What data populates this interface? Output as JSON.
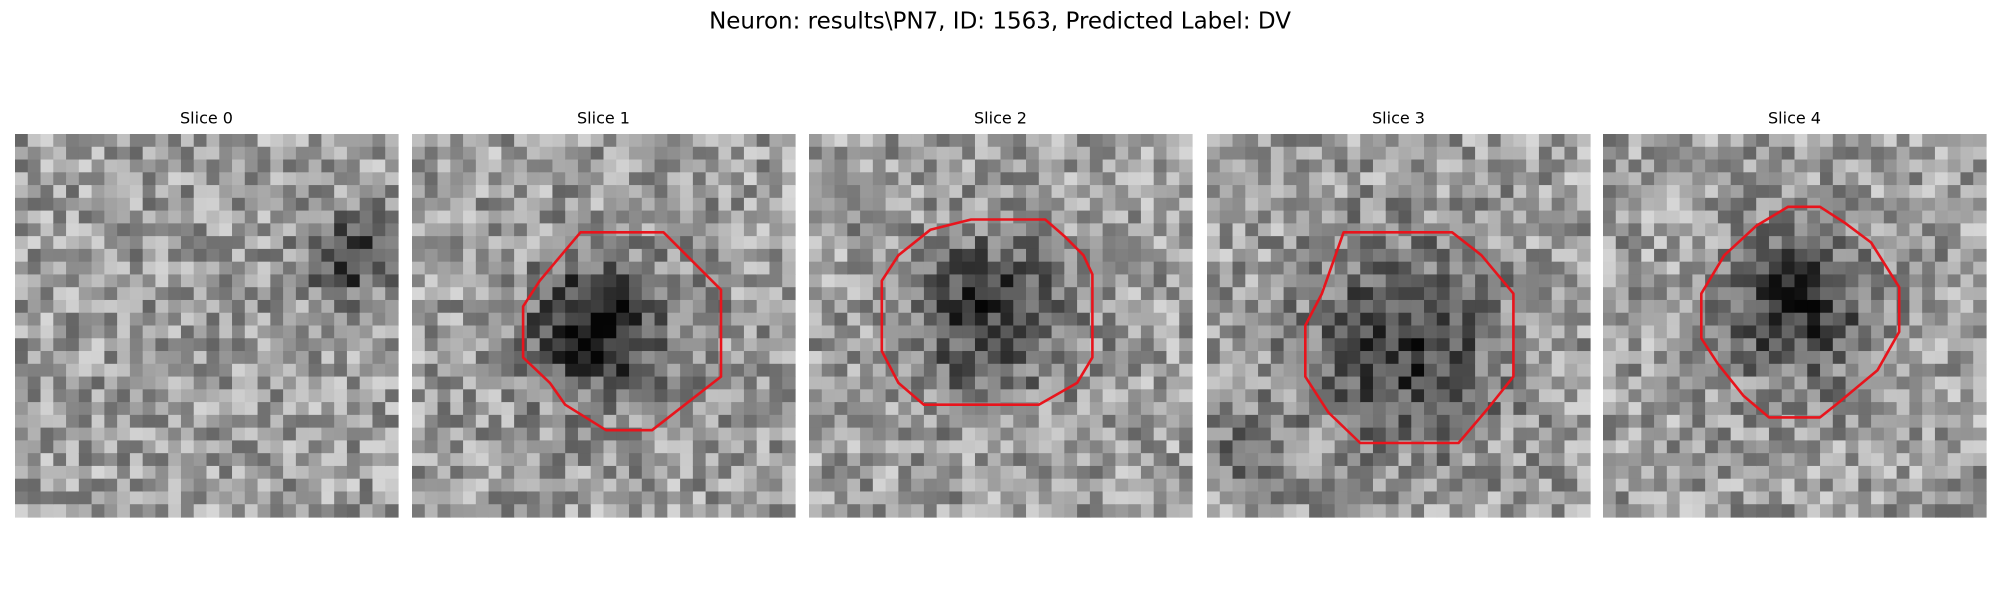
{
  "title": "Neuron: results\\PN7, ID: 1563, Predicted Label: DV",
  "panels": [
    {
      "title": "Slice 0"
    },
    {
      "title": "Slice 1"
    },
    {
      "title": "Slice 2"
    },
    {
      "title": "Slice 3"
    },
    {
      "title": "Slice 4"
    }
  ]
}
